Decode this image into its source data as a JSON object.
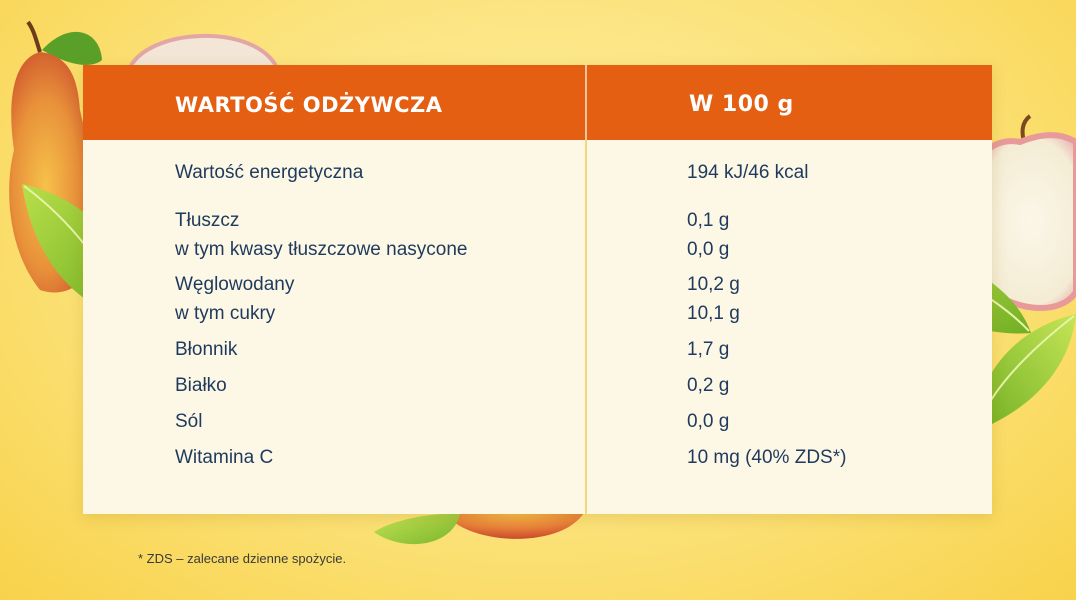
{
  "table": {
    "header": {
      "left": "WARTOŚĆ ODŻYWCZA",
      "right": "W 100 g"
    },
    "rows": [
      {
        "name": "Wartość energetyczna",
        "value": "194 kJ/46 kcal"
      },
      {
        "name": "Tłuszcz",
        "value": "0,1 g"
      },
      {
        "name": "w tym kwasy tłuszczowe nasycone",
        "value": "0,0 g"
      },
      {
        "name": "Węglowodany",
        "value": "10,2 g"
      },
      {
        "name": "w tym cukry",
        "value": "10,1 g"
      },
      {
        "name": "Błonnik",
        "value": "1,7 g"
      },
      {
        "name": "Białko",
        "value": "0,2 g"
      },
      {
        "name": "Sól",
        "value": "0,0 g"
      },
      {
        "name": "Witamina C",
        "value": "10 mg (40% ZDS*)"
      }
    ]
  },
  "footnote": "* ZDS – zalecane dzienne spożycie.",
  "colors": {
    "header": "#e45f12",
    "table_background": "#fdf7e6",
    "text": "#1e3a5c",
    "page_background": "#fbe27a"
  },
  "decorations": [
    "pear-icon",
    "apple-slice-icon",
    "leaf-icon"
  ]
}
